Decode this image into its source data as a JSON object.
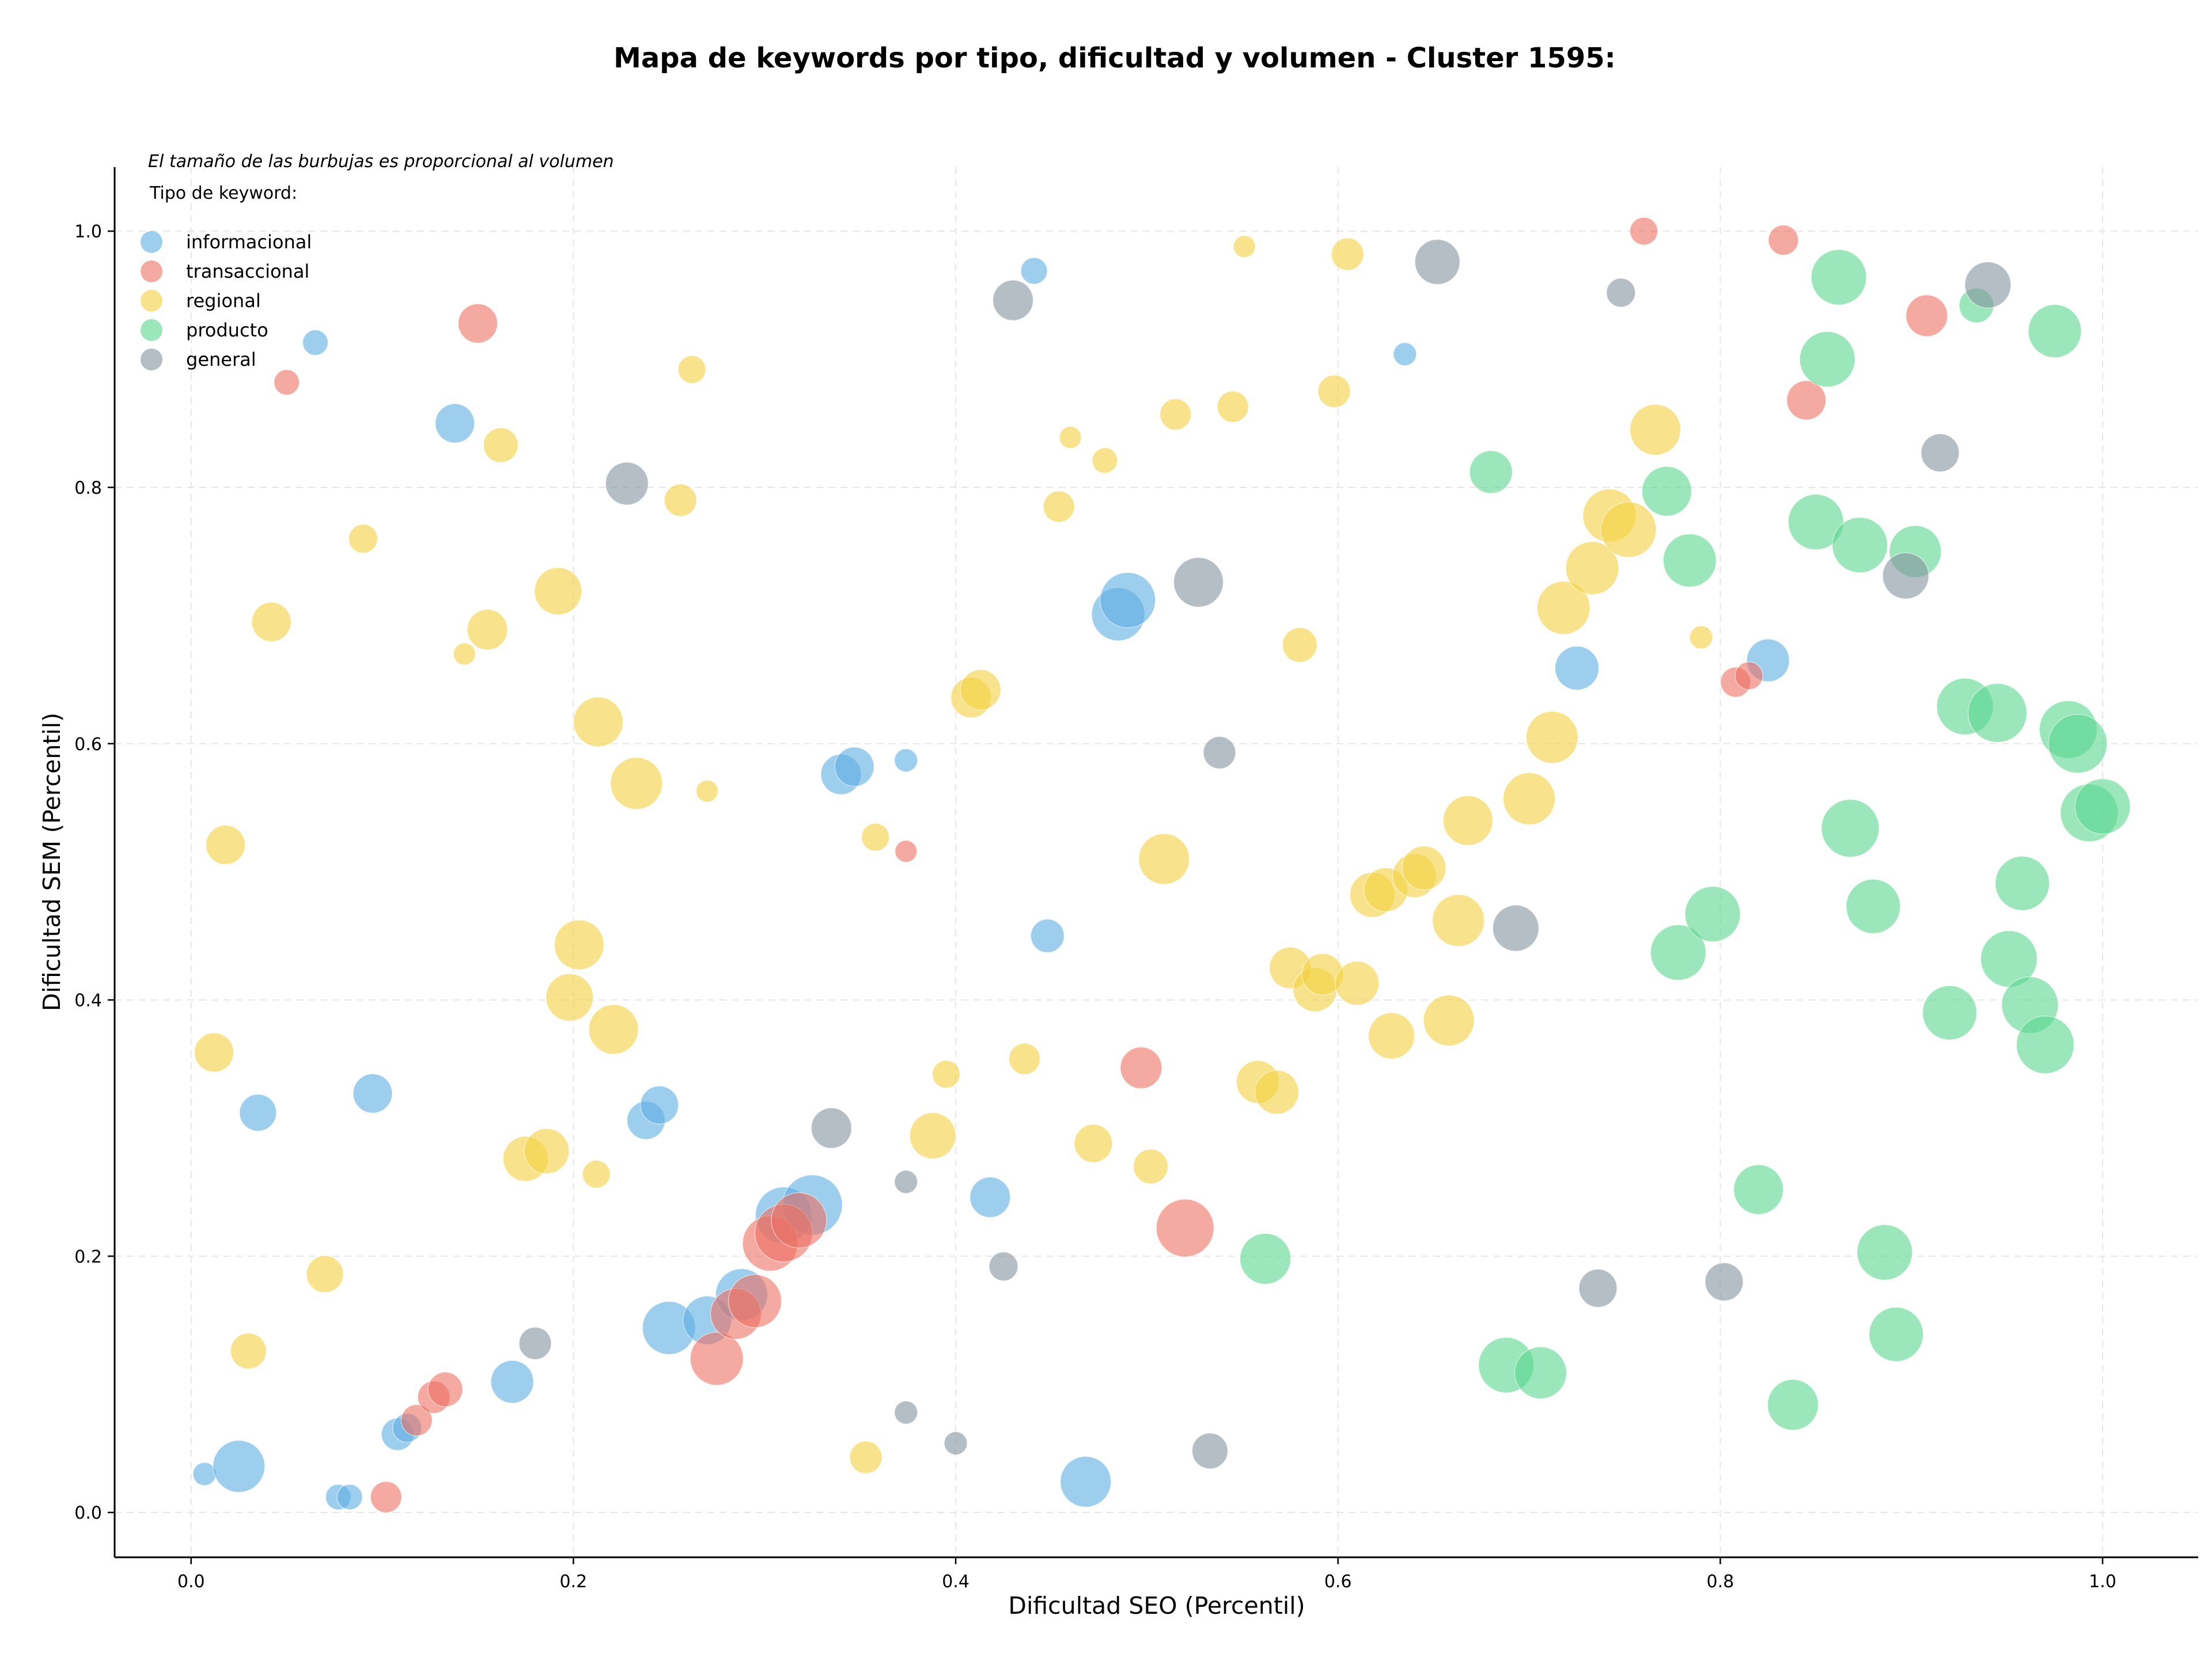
{
  "chart_data": {
    "type": "scatter",
    "title": "Mapa de keywords por tipo, dificultad y volumen - Cluster 1595:",
    "xlabel": "Dificultad SEO (Percentil)",
    "ylabel": "Dificultad SEM (Percentil)",
    "xlim": [
      -0.04,
      1.05
    ],
    "ylim": [
      -0.035,
      1.05
    ],
    "xticks": [
      "0.0",
      "0.2",
      "0.4",
      "0.6",
      "0.8",
      "1.0"
    ],
    "yticks": [
      "0.0",
      "0.2",
      "0.4",
      "0.6",
      "0.8",
      "1.0"
    ],
    "grid": true,
    "legend_placement": "top-left",
    "legend_note": "El tamaño de las burbujas es proporcional al volumen",
    "legend_title": "Tipo de keyword:",
    "series": [
      {
        "name": "informacional",
        "color": "#5DADE2",
        "points": [
          [
            0.007,
            0.03,
            20
          ],
          [
            0.025,
            0.036,
            45
          ],
          [
            0.035,
            0.312,
            32
          ],
          [
            0.065,
            0.913,
            22
          ],
          [
            0.077,
            0.012,
            22
          ],
          [
            0.083,
            0.012,
            22
          ],
          [
            0.095,
            0.327,
            34
          ],
          [
            0.108,
            0.061,
            28
          ],
          [
            0.113,
            0.066,
            25
          ],
          [
            0.138,
            0.85,
            34
          ],
          [
            0.168,
            0.102,
            37
          ],
          [
            0.238,
            0.306,
            33
          ],
          [
            0.245,
            0.318,
            33
          ],
          [
            0.25,
            0.144,
            46
          ],
          [
            0.27,
            0.15,
            42
          ],
          [
            0.288,
            0.17,
            45
          ],
          [
            0.31,
            0.232,
            49
          ],
          [
            0.325,
            0.24,
            52
          ],
          [
            0.34,
            0.576,
            35
          ],
          [
            0.347,
            0.582,
            34
          ],
          [
            0.374,
            0.587,
            20
          ],
          [
            0.418,
            0.246,
            35
          ],
          [
            0.441,
            0.969,
            23
          ],
          [
            0.448,
            0.45,
            29
          ],
          [
            0.468,
            0.024,
            44
          ],
          [
            0.485,
            0.701,
            46
          ],
          [
            0.49,
            0.712,
            48
          ],
          [
            0.635,
            0.904,
            20
          ],
          [
            0.725,
            0.659,
            38
          ],
          [
            0.825,
            0.665,
            37
          ]
        ]
      },
      {
        "name": "transaccional",
        "color": "#EC7063",
        "points": [
          [
            0.05,
            0.882,
            22
          ],
          [
            0.102,
            0.012,
            27
          ],
          [
            0.118,
            0.072,
            27
          ],
          [
            0.127,
            0.09,
            28
          ],
          [
            0.133,
            0.096,
            30
          ],
          [
            0.15,
            0.928,
            34
          ],
          [
            0.275,
            0.12,
            46
          ],
          [
            0.285,
            0.155,
            44
          ],
          [
            0.295,
            0.165,
            46
          ],
          [
            0.303,
            0.21,
            48
          ],
          [
            0.31,
            0.218,
            50
          ],
          [
            0.318,
            0.228,
            48
          ],
          [
            0.374,
            0.516,
            19
          ],
          [
            0.497,
            0.347,
            36
          ],
          [
            0.52,
            0.222,
            50
          ],
          [
            0.76,
            1.0,
            24
          ],
          [
            0.808,
            0.648,
            26
          ],
          [
            0.815,
            0.653,
            24
          ],
          [
            0.833,
            0.993,
            26
          ],
          [
            0.845,
            0.868,
            34
          ],
          [
            0.908,
            0.934,
            36
          ]
        ]
      },
      {
        "name": "regional",
        "color": "#F4D03F",
        "points": [
          [
            0.012,
            0.359,
            34
          ],
          [
            0.018,
            0.521,
            34
          ],
          [
            0.03,
            0.126,
            31
          ],
          [
            0.042,
            0.695,
            34
          ],
          [
            0.07,
            0.186,
            32
          ],
          [
            0.09,
            0.76,
            25
          ],
          [
            0.143,
            0.67,
            19
          ],
          [
            0.155,
            0.689,
            35
          ],
          [
            0.162,
            0.833,
            30
          ],
          [
            0.175,
            0.276,
            39
          ],
          [
            0.186,
            0.282,
            39
          ],
          [
            0.192,
            0.719,
            41
          ],
          [
            0.198,
            0.402,
            41
          ],
          [
            0.203,
            0.443,
            43
          ],
          [
            0.212,
            0.264,
            24
          ],
          [
            0.213,
            0.617,
            43
          ],
          [
            0.221,
            0.377,
            43
          ],
          [
            0.233,
            0.569,
            45
          ],
          [
            0.256,
            0.79,
            28
          ],
          [
            0.262,
            0.892,
            24
          ],
          [
            0.27,
            0.563,
            19
          ],
          [
            0.353,
            0.043,
            28
          ],
          [
            0.358,
            0.527,
            24
          ],
          [
            0.388,
            0.294,
            40
          ],
          [
            0.395,
            0.342,
            24
          ],
          [
            0.408,
            0.636,
            35
          ],
          [
            0.413,
            0.642,
            35
          ],
          [
            0.436,
            0.354,
            27
          ],
          [
            0.454,
            0.785,
            27
          ],
          [
            0.46,
            0.839,
            19
          ],
          [
            0.472,
            0.288,
            33
          ],
          [
            0.478,
            0.821,
            22
          ],
          [
            0.502,
            0.27,
            30
          ],
          [
            0.509,
            0.51,
            44
          ],
          [
            0.515,
            0.857,
            27
          ],
          [
            0.545,
            0.863,
            27
          ],
          [
            0.551,
            0.988,
            19
          ],
          [
            0.558,
            0.336,
            37
          ],
          [
            0.568,
            0.328,
            38
          ],
          [
            0.575,
            0.425,
            36
          ],
          [
            0.58,
            0.677,
            30
          ],
          [
            0.588,
            0.408,
            38
          ],
          [
            0.592,
            0.42,
            36
          ],
          [
            0.598,
            0.875,
            28
          ],
          [
            0.605,
            0.982,
            28
          ],
          [
            0.61,
            0.413,
            38
          ],
          [
            0.618,
            0.482,
            39
          ],
          [
            0.625,
            0.486,
            38
          ],
          [
            0.628,
            0.372,
            40
          ],
          [
            0.64,
            0.497,
            38
          ],
          [
            0.645,
            0.503,
            38
          ],
          [
            0.658,
            0.384,
            44
          ],
          [
            0.663,
            0.462,
            45
          ],
          [
            0.668,
            0.54,
            43
          ],
          [
            0.7,
            0.557,
            45
          ],
          [
            0.712,
            0.605,
            45
          ],
          [
            0.718,
            0.706,
            46
          ],
          [
            0.733,
            0.737,
            46
          ],
          [
            0.742,
            0.778,
            46
          ],
          [
            0.752,
            0.767,
            48
          ],
          [
            0.766,
            0.845,
            44
          ],
          [
            0.79,
            0.683,
            20
          ]
        ]
      },
      {
        "name": "producto",
        "color": "#58D68D",
        "points": [
          [
            0.562,
            0.198,
            44
          ],
          [
            0.68,
            0.812,
            37
          ],
          [
            0.688,
            0.115,
            48
          ],
          [
            0.706,
            0.109,
            45
          ],
          [
            0.772,
            0.797,
            43
          ],
          [
            0.778,
            0.437,
            48
          ],
          [
            0.784,
            0.743,
            46
          ],
          [
            0.796,
            0.467,
            48
          ],
          [
            0.82,
            0.252,
            43
          ],
          [
            0.838,
            0.084,
            44
          ],
          [
            0.85,
            0.773,
            48
          ],
          [
            0.856,
            0.9,
            48
          ],
          [
            0.862,
            0.964,
            48
          ],
          [
            0.868,
            0.534,
            50
          ],
          [
            0.873,
            0.755,
            48
          ],
          [
            0.88,
            0.473,
            47
          ],
          [
            0.886,
            0.203,
            48
          ],
          [
            0.892,
            0.139,
            47
          ],
          [
            0.902,
            0.75,
            45
          ],
          [
            0.92,
            0.39,
            47
          ],
          [
            0.928,
            0.629,
            49
          ],
          [
            0.934,
            0.942,
            30
          ],
          [
            0.945,
            0.624,
            51
          ],
          [
            0.951,
            0.432,
            49
          ],
          [
            0.958,
            0.491,
            47
          ],
          [
            0.962,
            0.396,
            49
          ],
          [
            0.97,
            0.365,
            50
          ],
          [
            0.975,
            0.922,
            46
          ],
          [
            0.982,
            0.611,
            50
          ],
          [
            0.987,
            0.6,
            51
          ],
          [
            0.993,
            0.546,
            50
          ],
          [
            1.0,
            0.551,
            48
          ]
        ]
      },
      {
        "name": "general",
        "color": "#85929E",
        "points": [
          [
            0.18,
            0.132,
            28
          ],
          [
            0.228,
            0.803,
            37
          ],
          [
            0.335,
            0.3,
            35
          ],
          [
            0.374,
            0.258,
            20
          ],
          [
            0.374,
            0.078,
            20
          ],
          [
            0.4,
            0.054,
            20
          ],
          [
            0.425,
            0.192,
            25
          ],
          [
            0.43,
            0.946,
            35
          ],
          [
            0.527,
            0.726,
            43
          ],
          [
            0.533,
            0.048,
            31
          ],
          [
            0.538,
            0.593,
            28
          ],
          [
            0.652,
            0.976,
            39
          ],
          [
            0.693,
            0.456,
            40
          ],
          [
            0.736,
            0.175,
            33
          ],
          [
            0.748,
            0.952,
            25
          ],
          [
            0.802,
            0.18,
            33
          ],
          [
            0.897,
            0.731,
            40
          ],
          [
            0.915,
            0.827,
            33
          ],
          [
            0.94,
            0.958,
            40
          ]
        ]
      }
    ]
  }
}
